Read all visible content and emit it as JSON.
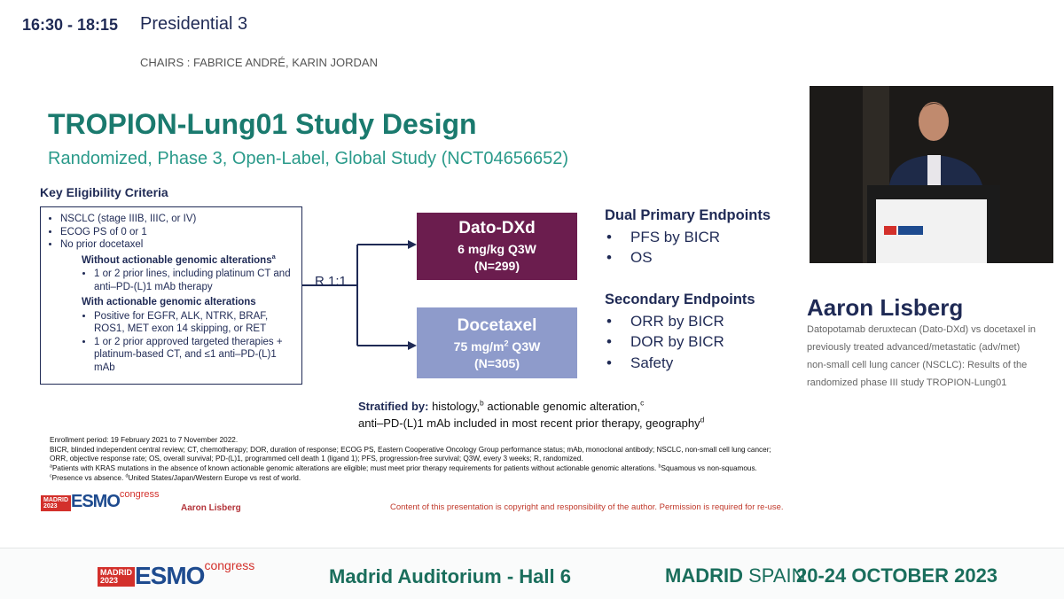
{
  "header": {
    "time": "16:30 - 18:15",
    "session": "Presidential 3",
    "chairs": "CHAIRS : FABRICE ANDRÉ, KARIN JORDAN"
  },
  "slide": {
    "title": "TROPION-Lung01 Study Design",
    "subtitle": "Randomized, Phase 3, Open-Label, Global Study (NCT04656652)",
    "eligibility": {
      "heading": "Key Eligibility Criteria",
      "items": [
        "NSCLC (stage IIIB, IIIC, or IV)",
        "ECOG PS of 0 or 1",
        "No prior docetaxel"
      ],
      "groups": [
        {
          "heading": "Without actionable genomic alterations",
          "sup": "a",
          "items": [
            "1 or 2 prior lines, including platinum CT and anti–PD-(L)1 mAb therapy"
          ]
        },
        {
          "heading": "With actionable genomic alterations",
          "items": [
            "Positive for EGFR, ALK, NTRK, BRAF, ROS1, MET exon 14 skipping, or RET",
            "1 or 2 prior approved targeted therapies + platinum-based CT, and ≤1 anti–PD-(L)1 mAb"
          ]
        }
      ]
    },
    "randomization": "R 1:1",
    "arms": [
      {
        "name": "Dato-DXd",
        "dose": "6 mg/kg Q3W",
        "n": "(N=299)"
      },
      {
        "name": "Docetaxel",
        "dose": "75 mg/m",
        "dose_sup": "2",
        "dose_end": " Q3W",
        "n": "(N=305)"
      }
    ],
    "primary": {
      "heading": "Dual Primary Endpoints",
      "items": [
        "PFS by BICR",
        "OS"
      ]
    },
    "secondary": {
      "heading": "Secondary Endpoints",
      "items": [
        "ORR by BICR",
        "DOR by BICR",
        "Safety"
      ]
    },
    "stratified": {
      "label": "Stratified by:",
      "part1": " histology,",
      "sup1": "b",
      "part2": " actionable genomic alteration,",
      "sup2": "c",
      "part3": "anti–PD-(L)1 mAb included in most recent prior therapy, geography",
      "sup3": "d"
    },
    "notes": [
      "Enrollment period: 19 February 2021 to 7 November 2022.",
      "BICR, blinded independent central review; CT, chemotherapy; DOR, duration of response; ECOG PS, Eastern Cooperative Oncology Group performance status; mAb, monoclonal antibody; NSCLC, non-small cell lung cancer;",
      "ORR, objective response rate; OS, overall survival; PD-(L)1, programmed cell death 1 (ligand 1); PFS, progression-free survival; Q3W, every 3 weeks; R, randomized."
    ],
    "footnotes": [
      {
        "sup": "a",
        "text": "Patients with KRAS mutations in the absence of known actionable genomic alterations are eligible; must meet prior therapy requirements for patients without actionable genomic alterations. "
      },
      {
        "sup": "b",
        "text": "Squamous vs non-squamous."
      },
      {
        "sup": "c",
        "text": "Presence vs absence. "
      },
      {
        "sup": "d",
        "text": "United States/Japan/Western Europe vs rest of world."
      }
    ],
    "logo": {
      "city": "MADRID",
      "year": "2023",
      "brand": "ESMO",
      "tag": "congress"
    },
    "presenter": "Aaron Lisberg",
    "copyright": "Content of this presentation is copyright and responsibility of the author. Permission is required for re-use."
  },
  "speaker": {
    "name": "Aaron Lisberg",
    "talk": "Datopotamab deruxtecan (Dato-DXd) vs docetaxel in previously treated advanced/metastatic (adv/met) non-small cell lung cancer (NSCLC): Results of the randomized phase III study TROPION-Lung01"
  },
  "footer": {
    "logo": {
      "city": "MADRID",
      "year": "2023",
      "brand": "ESMO",
      "tag": "congress"
    },
    "room": "Madrid Auditorium - Hall 6",
    "city": "MADRID",
    "country": " SPAIN",
    "dates": "20-24 OCTOBER 2023"
  }
}
